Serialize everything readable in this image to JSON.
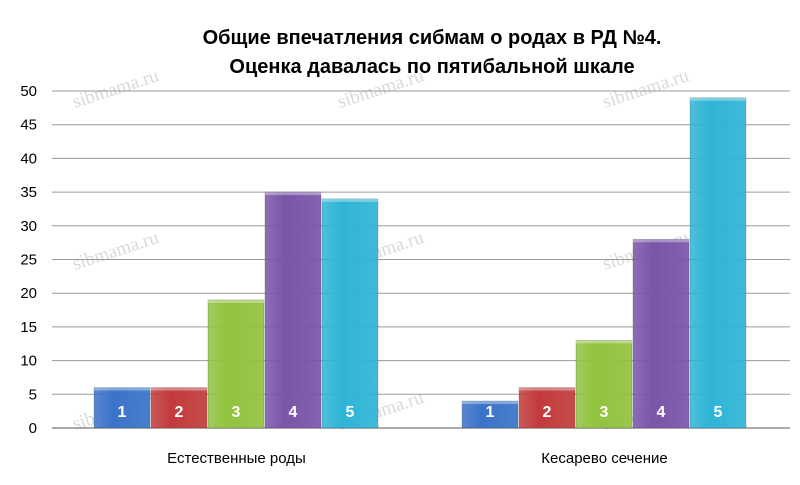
{
  "chart_data": {
    "type": "bar",
    "title": [
      "Общие впечатления сибмам о родах в РД №4.",
      "Оценка давалась по пятибальной шкале"
    ],
    "categories": [
      "Естественные роды",
      "Кесарево сечение"
    ],
    "series": [
      {
        "label": "1",
        "color": "#3a73c8",
        "values": [
          6,
          4
        ]
      },
      {
        "label": "2",
        "color": "#c23b3b",
        "values": [
          6,
          6
        ]
      },
      {
        "label": "3",
        "color": "#92c23e",
        "values": [
          19,
          13
        ]
      },
      {
        "label": "4",
        "color": "#7a55a8",
        "values": [
          35,
          28
        ]
      },
      {
        "label": "5",
        "color": "#2fb4d6",
        "values": [
          34,
          49
        ]
      }
    ],
    "ylim": [
      0,
      50
    ],
    "yticks": [
      0,
      5,
      10,
      15,
      20,
      25,
      30,
      35,
      40,
      45,
      50
    ],
    "grid": true,
    "legend": "none"
  },
  "watermark": "sibmama.ru"
}
